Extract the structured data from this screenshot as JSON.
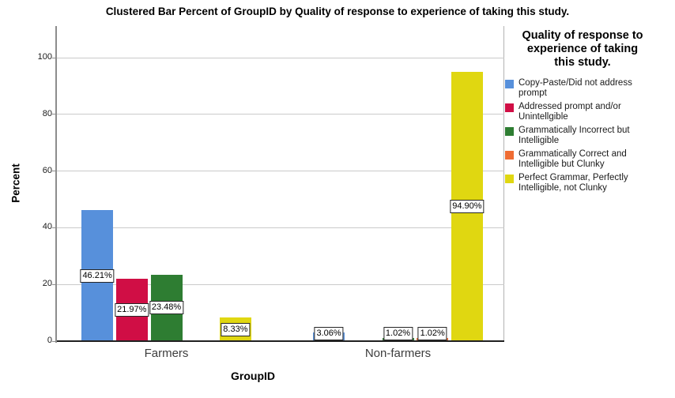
{
  "title": "Clustered Bar Percent of GroupID by Quality of response to experience of taking this study.",
  "y_axis": {
    "label": "Percent",
    "ticks": [
      0,
      20,
      40,
      60,
      80,
      100
    ]
  },
  "x_axis": {
    "label": "GroupID",
    "categories": [
      "Farmers",
      "Non-farmers"
    ]
  },
  "legend": {
    "title_lines": [
      "Quality of response to",
      "experience of taking",
      "this study."
    ],
    "items": [
      {
        "lines": [
          "Copy-Paste/Did not address",
          "prompt"
        ]
      },
      {
        "lines": [
          "Addressed prompt and/or",
          "Unintellgible"
        ]
      },
      {
        "lines": [
          "Grammatically Incorrect but",
          "Intelligible"
        ]
      },
      {
        "lines": [
          "Grammatically Correct and",
          "Intelligible but Clunky"
        ]
      },
      {
        "lines": [
          "Perfect Grammar, Perfectly",
          "Intelligible, not Clunky"
        ]
      }
    ]
  },
  "chart_data": {
    "type": "bar",
    "title": "Clustered Bar Percent of GroupID by Quality of response to experience of taking this study.",
    "xlabel": "GroupID",
    "ylabel": "Percent",
    "ylim": [
      0,
      111
    ],
    "grid": true,
    "legend_position": "right",
    "legend_title": "Quality of response to experience of taking this study.",
    "categories": [
      "Farmers",
      "Non-farmers"
    ],
    "series": [
      {
        "name": "Copy-Paste/Did not address prompt",
        "color": "#5790db",
        "values": [
          46.21,
          3.06
        ],
        "labels": [
          "46.21%",
          "3.06%"
        ]
      },
      {
        "name": "Addressed prompt and/or Unintellgible",
        "color": "#d00e45",
        "values": [
          21.97,
          0
        ],
        "labels": [
          "21.97%",
          null
        ]
      },
      {
        "name": "Grammatically Incorrect but Intelligible",
        "color": "#2e7d32",
        "values": [
          23.48,
          1.02
        ],
        "labels": [
          "23.48%",
          "1.02%"
        ]
      },
      {
        "name": "Grammatically Correct and Intelligible but Clunky",
        "color": "#ef6c33",
        "values": [
          0,
          1.02
        ],
        "labels": [
          null,
          "1.02%"
        ]
      },
      {
        "name": "Perfect Grammar, Perfectly Intelligible, not Clunky",
        "color": "#e0d711",
        "values": [
          8.33,
          94.9
        ],
        "labels": [
          "8.33%",
          "94.90%"
        ]
      }
    ]
  }
}
